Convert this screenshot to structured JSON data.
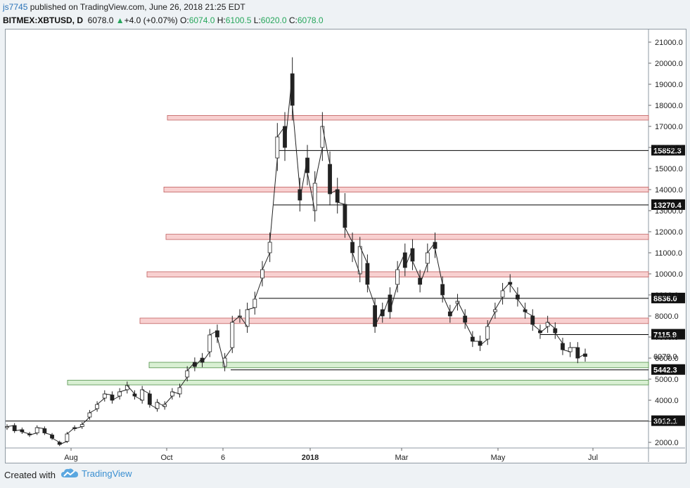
{
  "header": {
    "author": "js7745",
    "published": "published on TradingView.com, June 26, 2018 21:25 EDT"
  },
  "symbol": {
    "name": "BITMEX:XBTUSD, D",
    "last": "6078.0",
    "change_arrow": "▲",
    "change": "+4.0 (+0.07%)",
    "o_label": "O:",
    "o": "6074.0",
    "h_label": "H:",
    "h": "6100.5",
    "l_label": "L:",
    "l": "6020.0",
    "c_label": "C:",
    "c": "6078.0",
    "up_color": "#26a65b"
  },
  "footer": {
    "created_with": "Created with",
    "brand": "TradingView",
    "brand_color": "#3a8fd1",
    "logo_icon": "tradingview-cloud-icon"
  },
  "chart_data": {
    "type": "candlestick",
    "symbol": "BITMEX:XBTUSD",
    "interval": "D",
    "y_axis_side": "right",
    "ylim": [
      1500,
      21900
    ],
    "y_ticks": [
      "21000.0",
      "20000.0",
      "19000.0",
      "18000.0",
      "17000.0",
      "16000.0",
      "15000.0",
      "14000.0",
      "13000.0",
      "12000.0",
      "11000.0",
      "10000.0",
      "9000.0",
      "8000.0",
      "7000.0",
      "6000.0",
      "5000.0",
      "4000.0",
      "3000.0",
      "2000.0"
    ],
    "x_tick_labels": [
      "Aug",
      "Oct",
      "6",
      "2018",
      "Mar",
      "May",
      "Jul"
    ],
    "x_tick_bold": "2018",
    "last_price_label": "6078.0",
    "price_path": [
      [
        2700,
        2750
      ],
      [
        2800,
        2550
      ],
      [
        2600,
        2500
      ],
      [
        2400,
        2350
      ],
      [
        2450,
        2700
      ],
      [
        2650,
        2450
      ],
      [
        2350,
        2200
      ],
      [
        2000,
        1900
      ],
      [
        2050,
        2400
      ],
      [
        2700,
        2650
      ],
      [
        2750,
        2850
      ],
      [
        3200,
        3400
      ],
      [
        3600,
        3800
      ],
      [
        4100,
        4300
      ],
      [
        4250,
        4000
      ],
      [
        4200,
        4400
      ],
      [
        4500,
        4700
      ],
      [
        4300,
        4200
      ],
      [
        4000,
        4500
      ],
      [
        4300,
        3800
      ],
      [
        3600,
        3900
      ],
      [
        3700,
        3800
      ],
      [
        4200,
        4400
      ],
      [
        4300,
        4600
      ],
      [
        5100,
        5400
      ],
      [
        5800,
        5600
      ],
      [
        6000,
        5800
      ],
      [
        6300,
        7100
      ],
      [
        7300,
        7000
      ],
      [
        5600,
        6000
      ],
      [
        6500,
        7700
      ],
      [
        8000,
        8000
      ],
      [
        7500,
        8300
      ],
      [
        8400,
        8800
      ],
      [
        9800,
        10200
      ],
      [
        11000,
        11500
      ],
      [
        15500,
        16500
      ],
      [
        17000,
        16000
      ],
      [
        19500,
        18000
      ],
      [
        14000,
        13500
      ],
      [
        15500,
        14800
      ],
      [
        13000,
        14300
      ],
      [
        16000,
        17000
      ],
      [
        15200,
        13800
      ],
      [
        14000,
        13400
      ],
      [
        13300,
        12200
      ],
      [
        11500,
        11000
      ],
      [
        10000,
        11300
      ],
      [
        10500,
        9500
      ],
      [
        8500,
        7500
      ],
      [
        8300,
        8000
      ],
      [
        9000,
        8200
      ],
      [
        9500,
        10200
      ],
      [
        11000,
        10300
      ],
      [
        11200,
        10600
      ],
      [
        9800,
        9500
      ],
      [
        10500,
        11000
      ],
      [
        11500,
        11200
      ],
      [
        9500,
        9000
      ],
      [
        8200,
        8000
      ],
      [
        8600,
        8700
      ],
      [
        8000,
        7700
      ],
      [
        7000,
        6800
      ],
      [
        6800,
        6600
      ],
      [
        6900,
        7500
      ],
      [
        8200,
        8300
      ],
      [
        8900,
        9200
      ],
      [
        9600,
        9500
      ],
      [
        9000,
        8800
      ],
      [
        8300,
        8200
      ],
      [
        8000,
        7600
      ],
      [
        7300,
        7200
      ],
      [
        7500,
        7700
      ],
      [
        7400,
        7200
      ],
      [
        6700,
        6400
      ],
      [
        6300,
        6500
      ],
      [
        6500,
        6000
      ],
      [
        6200,
        6078
      ]
    ],
    "horizontal_lines": [
      {
        "type": "level",
        "value": 15852.3,
        "label": "15852.3"
      },
      {
        "type": "level",
        "value": 13270.4,
        "label": "13270.4"
      },
      {
        "type": "level",
        "value": 8836.0,
        "label": "8836.0"
      },
      {
        "type": "level",
        "value": 7115.9,
        "label": "7115.9"
      },
      {
        "type": "level",
        "value": 5442.3,
        "label": "5442.3"
      },
      {
        "type": "level",
        "value": 3012.1,
        "label": "3012.1"
      }
    ],
    "zones": [
      {
        "kind": "resistance",
        "color": "#f8d0d0",
        "border": "#c06060",
        "low": 17300,
        "high": 17520
      },
      {
        "kind": "resistance",
        "color": "#f8d0d0",
        "border": "#c06060",
        "low": 13880,
        "high": 14120
      },
      {
        "kind": "resistance",
        "color": "#f8d0d0",
        "border": "#c06060",
        "low": 11630,
        "high": 11880
      },
      {
        "kind": "resistance",
        "color": "#f8d0d0",
        "border": "#c06060",
        "low": 9850,
        "high": 10100
      },
      {
        "kind": "resistance",
        "color": "#f8d0d0",
        "border": "#c06060",
        "low": 7640,
        "high": 7900
      },
      {
        "kind": "support",
        "color": "#d9f0d3",
        "border": "#4f8f48",
        "low": 5540,
        "high": 5800
      },
      {
        "kind": "support",
        "color": "#d9f0d3",
        "border": "#4f8f48",
        "low": 4730,
        "high": 4950
      }
    ]
  }
}
